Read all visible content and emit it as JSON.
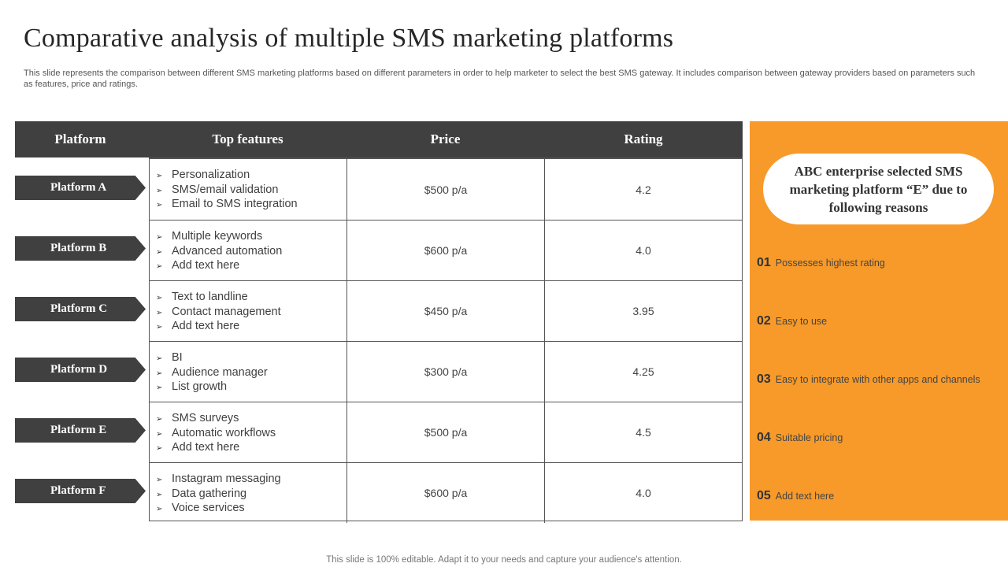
{
  "title": "Comparative analysis of multiple SMS marketing platforms",
  "subtitle": "This slide represents the comparison between different SMS marketing platforms based on different parameters in order to help marketer to select the best SMS gateway. It includes comparison between gateway providers based on parameters such as features, price and ratings.",
  "table": {
    "headers": [
      "Platform",
      "Top features",
      "Price",
      "Rating"
    ],
    "bullet_glyph": "➢",
    "rows": [
      {
        "platform": "Platform  A",
        "features": [
          "Personalization",
          "SMS/email validation",
          "Email to SMS integration"
        ],
        "price": "$500 p/a",
        "rating": "4.2"
      },
      {
        "platform": "Platform  B",
        "features": [
          "Multiple keywords",
          "Advanced automation",
          "Add text here"
        ],
        "price": "$600 p/a",
        "rating": "4.0"
      },
      {
        "platform": "Platform  C",
        "features": [
          "Text to landline",
          "Contact management",
          "Add text here"
        ],
        "price": "$450 p/a",
        "rating": "3.95"
      },
      {
        "platform": "Platform  D",
        "features": [
          "BI",
          "Audience manager",
          "List growth"
        ],
        "price": "$300 p/a",
        "rating": "4.25"
      },
      {
        "platform": "Platform  E",
        "features": [
          "SMS surveys",
          "Automatic workflows",
          "Add text here"
        ],
        "price": "$500 p/a",
        "rating": "4.5"
      },
      {
        "platform": "Platform  F",
        "features": [
          "Instagram messaging",
          "Data gathering",
          "Voice services"
        ],
        "price": "$600 p/a",
        "rating": "4.0"
      }
    ]
  },
  "panel": {
    "heading": "ABC enterprise selected SMS marketing platform “E” due to following reasons",
    "reasons": [
      {
        "num": "01",
        "text": "Possesses highest rating"
      },
      {
        "num": "02",
        "text": "Easy to use"
      },
      {
        "num": "03",
        "text": "Easy to integrate with other apps and channels"
      },
      {
        "num": "04",
        "text": "Suitable pricing"
      },
      {
        "num": "05",
        "text": "Add text here"
      }
    ]
  },
  "colors": {
    "dark": "#404040",
    "accent": "#f79a2a"
  },
  "footer": "This slide is 100% editable. Adapt it to your needs and capture your audience's attention."
}
